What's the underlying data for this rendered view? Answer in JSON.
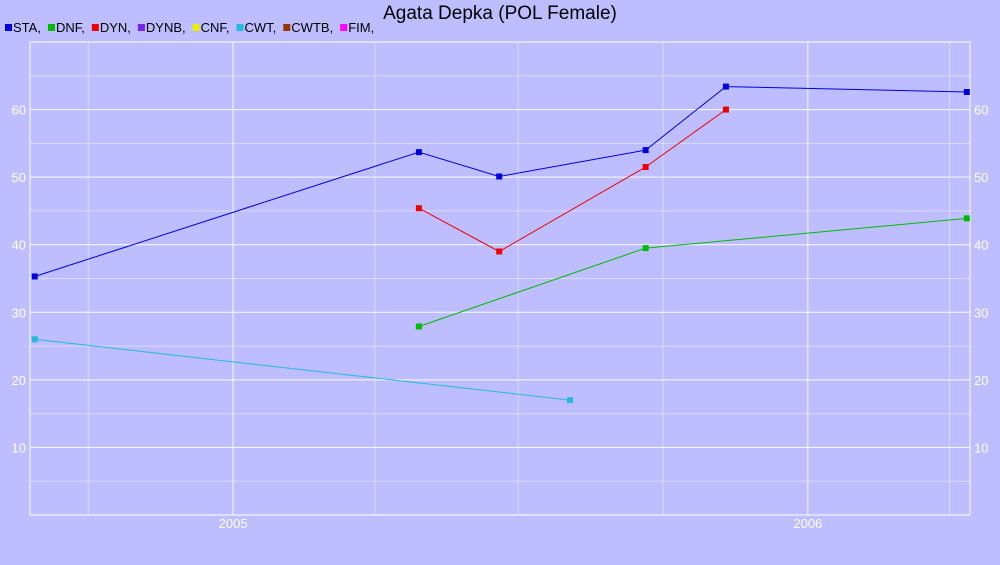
{
  "chart_data": {
    "type": "line",
    "title": "Agata Depka (POL Female)",
    "xlabel": "",
    "ylabel": "",
    "x_ticks": [
      "2005",
      "2006"
    ],
    "y_ticks": [
      10,
      20,
      30,
      40,
      50,
      60
    ],
    "ylim": [
      0,
      70
    ],
    "xlim": [
      "2004-08-25",
      "2006-04-14"
    ],
    "grid": true,
    "legend_position": "top-left",
    "legend": [
      {
        "label": "STA,",
        "color": "#0000dd"
      },
      {
        "label": "DNF,",
        "color": "#00bb00"
      },
      {
        "label": "DYN,",
        "color": "#ee0000"
      },
      {
        "label": "DYNB,",
        "color": "#7722ee"
      },
      {
        "label": "CNF,",
        "color": "#eeee00"
      },
      {
        "label": "CWT,",
        "color": "#22bbdd"
      },
      {
        "label": "CWTB,",
        "color": "#993300"
      },
      {
        "label": "FIM,",
        "color": "#ff00ff"
      }
    ],
    "series": [
      {
        "name": "STA",
        "color": "#0000dd",
        "points": [
          {
            "x": "2004-08-28",
            "y": 35.3
          },
          {
            "x": "2005-04-29",
            "y": 53.7
          },
          {
            "x": "2005-06-19",
            "y": 50.1
          },
          {
            "x": "2005-09-20",
            "y": 54.0
          },
          {
            "x": "2005-11-10",
            "y": 63.4
          },
          {
            "x": "2006-04-12",
            "y": 62.6
          }
        ]
      },
      {
        "name": "DNF",
        "color": "#00bb00",
        "points": [
          {
            "x": "2005-04-29",
            "y": 27.9
          },
          {
            "x": "2005-09-20",
            "y": 39.5
          },
          {
            "x": "2006-04-12",
            "y": 43.9
          }
        ]
      },
      {
        "name": "DYN",
        "color": "#ee0000",
        "points": [
          {
            "x": "2005-04-29",
            "y": 45.4
          },
          {
            "x": "2005-06-19",
            "y": 39.0
          },
          {
            "x": "2005-09-20",
            "y": 51.5
          },
          {
            "x": "2005-11-10",
            "y": 60.0
          }
        ]
      },
      {
        "name": "CWT",
        "color": "#22bbdd",
        "points": [
          {
            "x": "2004-08-28",
            "y": 26.0
          },
          {
            "x": "2005-08-03",
            "y": 17.0
          }
        ]
      }
    ]
  }
}
